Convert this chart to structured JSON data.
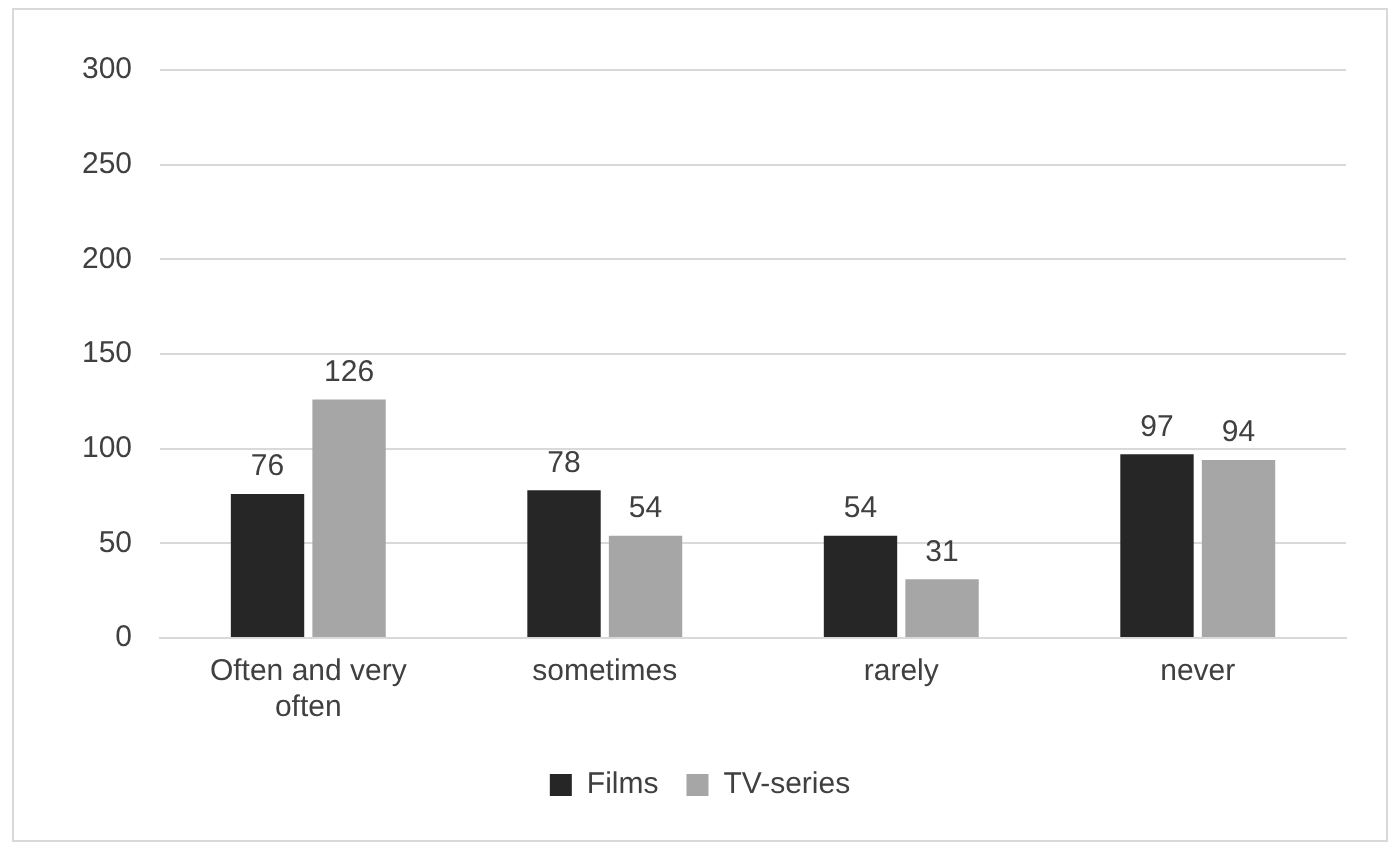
{
  "chart_data": {
    "type": "bar",
    "categories": [
      "Often and very often",
      "sometimes",
      "rarely",
      "never"
    ],
    "series": [
      {
        "name": "Films",
        "color": "#262626",
        "values": [
          76,
          78,
          54,
          97
        ]
      },
      {
        "name": "TV-series",
        "color": "#a6a6a6",
        "values": [
          126,
          54,
          31,
          94
        ]
      }
    ],
    "ylim": [
      0,
      300
    ],
    "yticks": [
      0,
      50,
      100,
      150,
      200,
      250,
      300
    ],
    "grid": "y",
    "legend": "bottom",
    "data_labels": true
  }
}
